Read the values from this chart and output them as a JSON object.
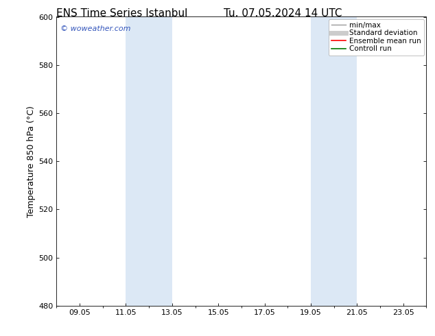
{
  "title": "ENS Time Series Istanbul",
  "title2": "Tu. 07.05.2024 14 UTC",
  "ylabel": "Temperature 850 hPa (°C)",
  "ylim": [
    480,
    600
  ],
  "yticks": [
    480,
    500,
    520,
    540,
    560,
    580,
    600
  ],
  "xtick_labels": [
    "09.05",
    "11.05",
    "13.05",
    "15.05",
    "17.05",
    "19.05",
    "21.05",
    "23.05"
  ],
  "xtick_positions": [
    1,
    3,
    5,
    7,
    9,
    11,
    13,
    15
  ],
  "shade_bands": [
    {
      "x_start": 3,
      "x_end": 5
    },
    {
      "x_start": 11,
      "x_end": 13
    }
  ],
  "shade_color": "#dce8f5",
  "bg_color": "#ffffff",
  "watermark": "© woweather.com",
  "watermark_color": "#3355bb",
  "legend_entries": [
    {
      "label": "min/max",
      "color": "#999999",
      "lw": 1.0,
      "style": "-"
    },
    {
      "label": "Standard deviation",
      "color": "#cccccc",
      "lw": 5,
      "style": "-"
    },
    {
      "label": "Ensemble mean run",
      "color": "#ff0000",
      "lw": 1.2,
      "style": "-"
    },
    {
      "label": "Controll run",
      "color": "#007700",
      "lw": 1.2,
      "style": "-"
    }
  ],
  "xmin": 0,
  "xmax": 16,
  "title_fontsize": 11,
  "axis_label_fontsize": 9,
  "tick_fontsize": 8,
  "legend_fontsize": 7.5
}
